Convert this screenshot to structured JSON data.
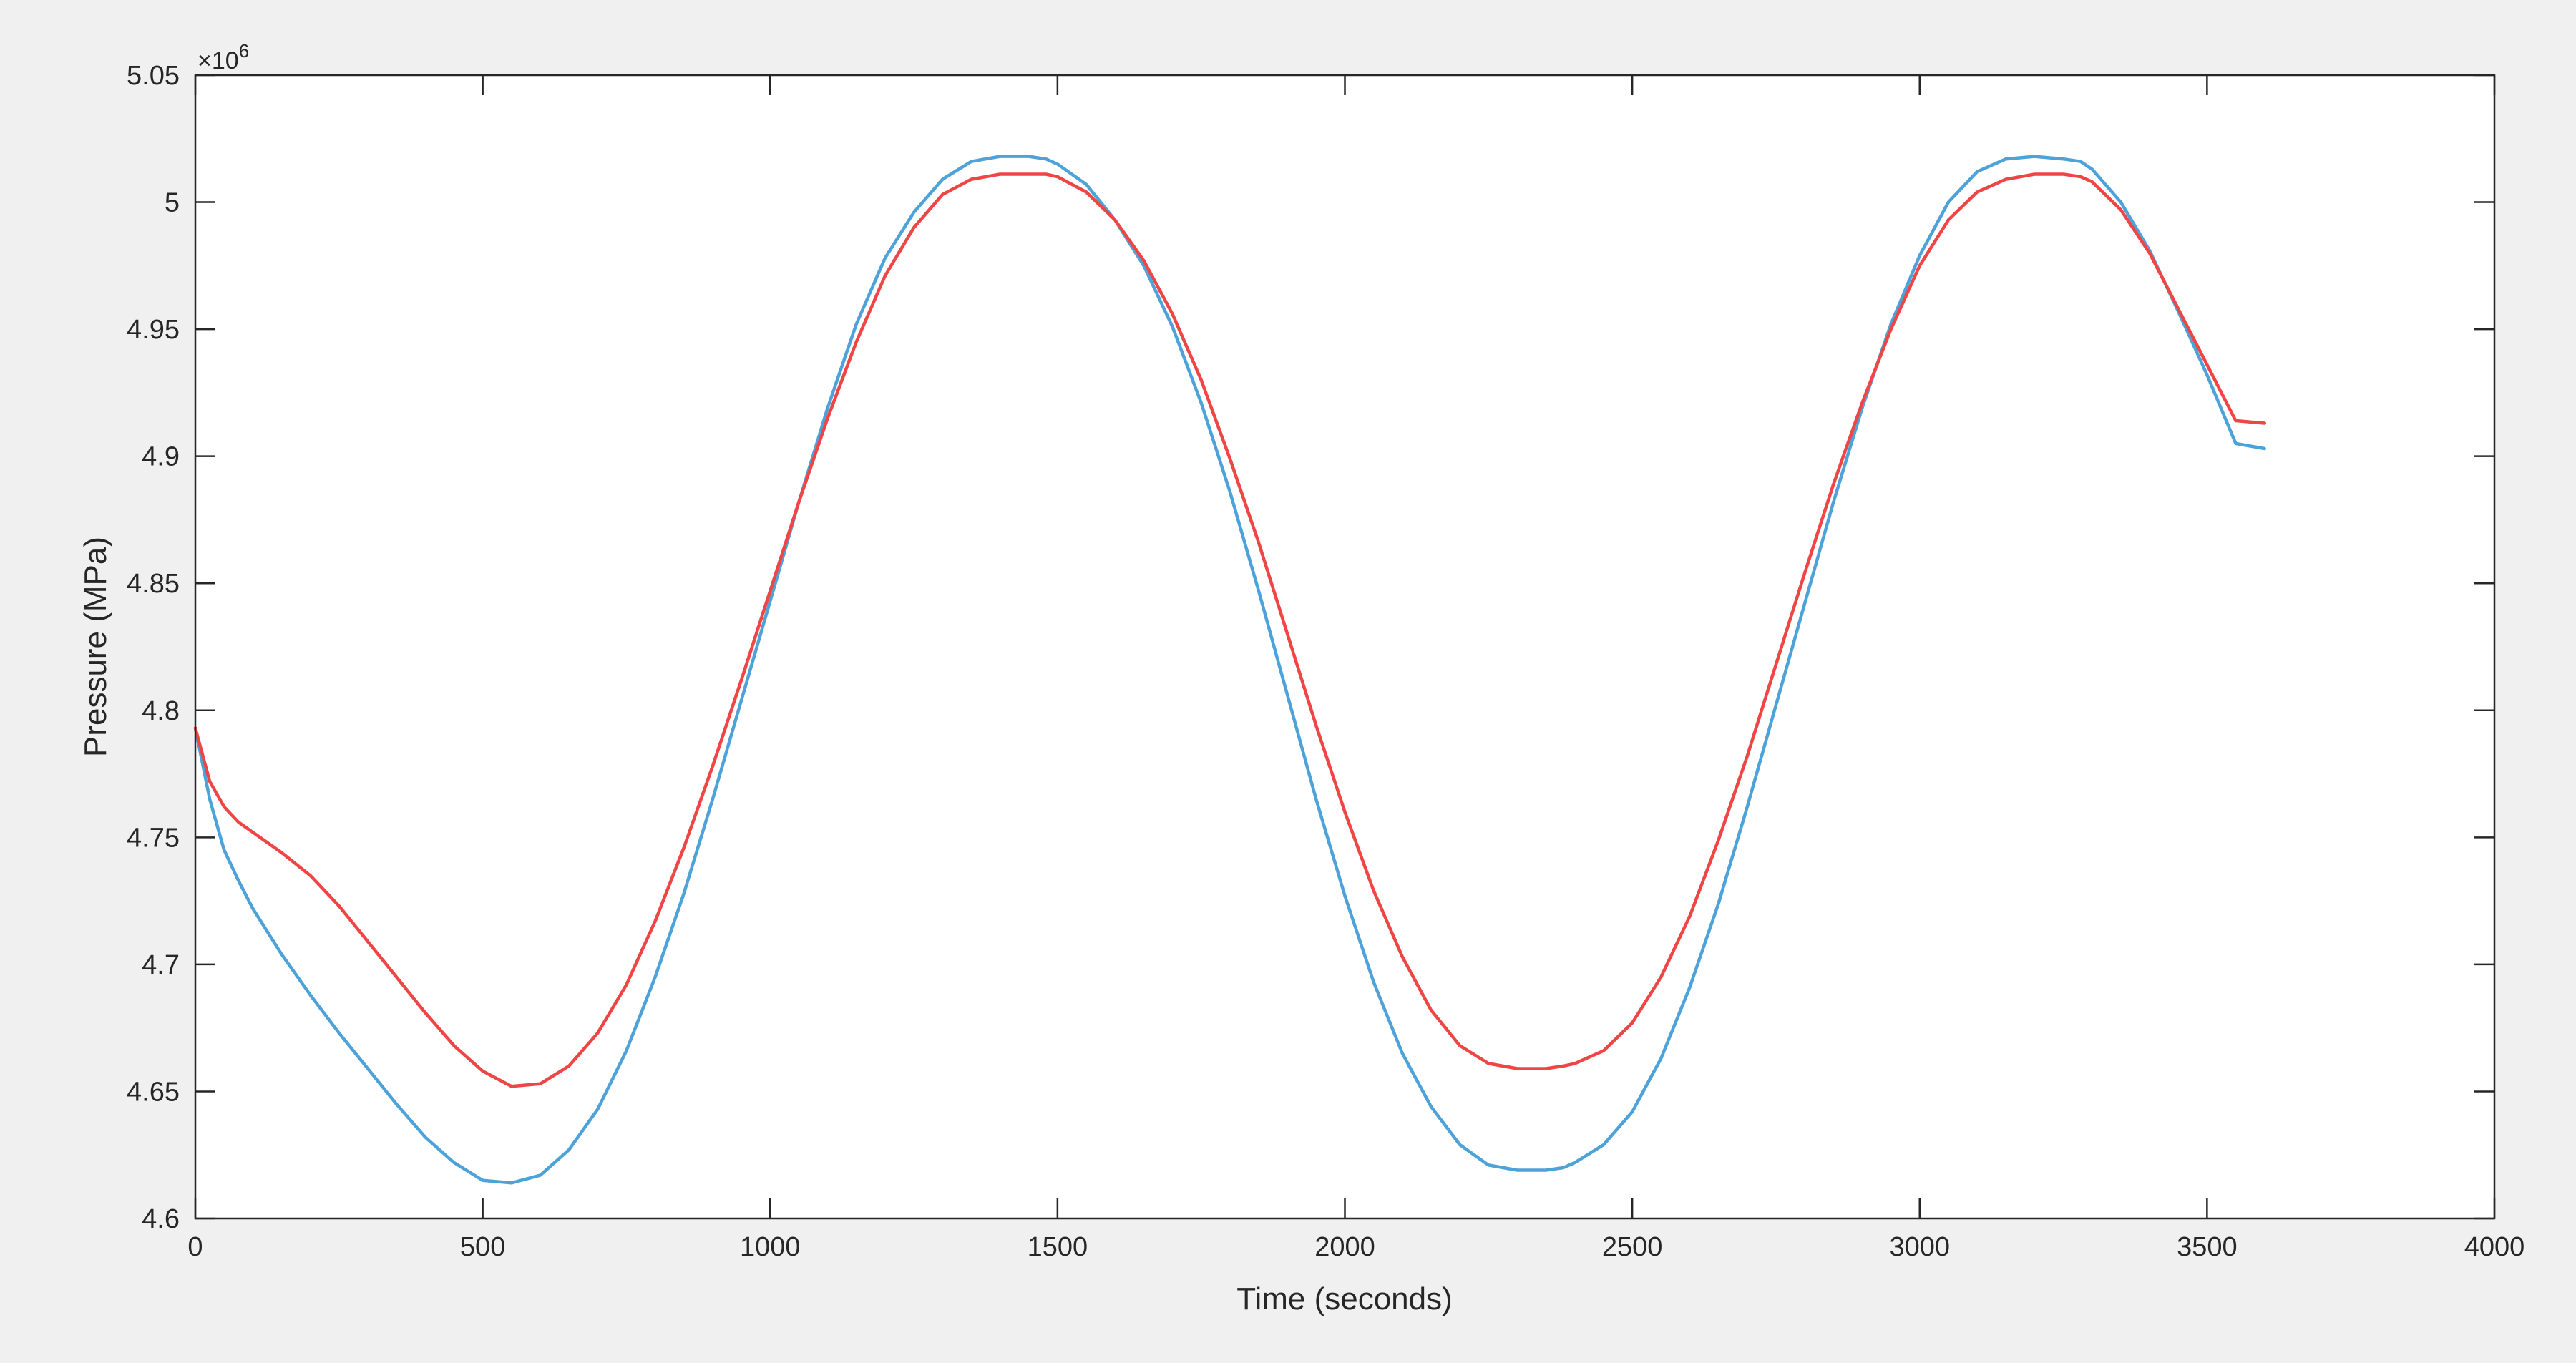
{
  "chart_data": {
    "type": "line",
    "title": "",
    "xlabel": "Time (seconds)",
    "ylabel": "Pressure (MPa)",
    "xlim": [
      0,
      4000
    ],
    "ylim": [
      4.6,
      5.05
    ],
    "x_ticks": [
      0,
      500,
      1000,
      1500,
      2000,
      2500,
      3000,
      3500,
      4000
    ],
    "x_tick_labels": [
      "0",
      "500",
      "1000",
      "1500",
      "2000",
      "2500",
      "3000",
      "3500",
      "4000"
    ],
    "y_ticks": [
      4.6,
      4.65,
      4.7,
      4.75,
      4.8,
      4.85,
      4.9,
      4.95,
      5.0,
      5.05
    ],
    "y_tick_labels": [
      "4.6",
      "4.65",
      "4.7",
      "4.75",
      "4.8",
      "4.85",
      "4.9",
      "4.95",
      "5",
      "5.05"
    ],
    "y_exponent_label": "×10",
    "y_exponent_power": "6",
    "grid": false,
    "x": [
      0,
      25,
      50,
      75,
      100,
      150,
      200,
      250,
      300,
      350,
      400,
      450,
      500,
      550,
      600,
      650,
      700,
      750,
      800,
      850,
      900,
      950,
      1000,
      1050,
      1100,
      1150,
      1200,
      1250,
      1300,
      1350,
      1400,
      1450,
      1480,
      1500,
      1550,
      1600,
      1650,
      1700,
      1750,
      1800,
      1850,
      1900,
      1950,
      2000,
      2050,
      2100,
      2150,
      2200,
      2250,
      2300,
      2350,
      2380,
      2400,
      2450,
      2500,
      2550,
      2600,
      2650,
      2700,
      2750,
      2800,
      2850,
      2900,
      2950,
      3000,
      3050,
      3100,
      3150,
      3200,
      3250,
      3280,
      3300,
      3350,
      3400,
      3450,
      3500,
      3550,
      3600
    ],
    "series": [
      {
        "color": "#4da3d9",
        "values": [
          4.793,
          4.765,
          4.745,
          4.733,
          4.722,
          4.704,
          4.688,
          4.673,
          4.659,
          4.645,
          4.632,
          4.622,
          4.615,
          4.614,
          4.617,
          4.627,
          4.643,
          4.666,
          4.695,
          4.728,
          4.765,
          4.804,
          4.843,
          4.882,
          4.919,
          4.952,
          4.978,
          4.996,
          5.009,
          5.016,
          5.018,
          5.018,
          5.017,
          5.015,
          5.007,
          4.993,
          4.975,
          4.951,
          4.921,
          4.886,
          4.847,
          4.806,
          4.765,
          4.727,
          4.693,
          4.665,
          4.644,
          4.629,
          4.621,
          4.619,
          4.619,
          4.62,
          4.622,
          4.629,
          4.642,
          4.663,
          4.691,
          4.724,
          4.762,
          4.802,
          4.842,
          4.882,
          4.919,
          4.952,
          4.979,
          5.0,
          5.012,
          5.017,
          5.018,
          5.017,
          5.016,
          5.013,
          5.0,
          4.981,
          4.957,
          4.932,
          4.905,
          4.903
        ]
      },
      {
        "color": "#f04545",
        "values": [
          4.793,
          4.772,
          4.762,
          4.756,
          4.752,
          4.744,
          4.735,
          4.723,
          4.709,
          4.695,
          4.681,
          4.668,
          4.658,
          4.652,
          4.653,
          4.66,
          4.673,
          4.692,
          4.717,
          4.746,
          4.778,
          4.812,
          4.847,
          4.882,
          4.915,
          4.945,
          4.971,
          4.99,
          5.003,
          5.009,
          5.011,
          5.011,
          5.011,
          5.01,
          5.004,
          4.993,
          4.977,
          4.956,
          4.93,
          4.899,
          4.866,
          4.83,
          4.794,
          4.76,
          4.729,
          4.703,
          4.682,
          4.668,
          4.661,
          4.659,
          4.659,
          4.66,
          4.661,
          4.666,
          4.677,
          4.695,
          4.719,
          4.749,
          4.782,
          4.818,
          4.854,
          4.889,
          4.921,
          4.95,
          4.975,
          4.993,
          5.004,
          5.009,
          5.011,
          5.011,
          5.01,
          5.008,
          4.997,
          4.98,
          4.958,
          4.936,
          4.914,
          4.913
        ]
      }
    ]
  }
}
